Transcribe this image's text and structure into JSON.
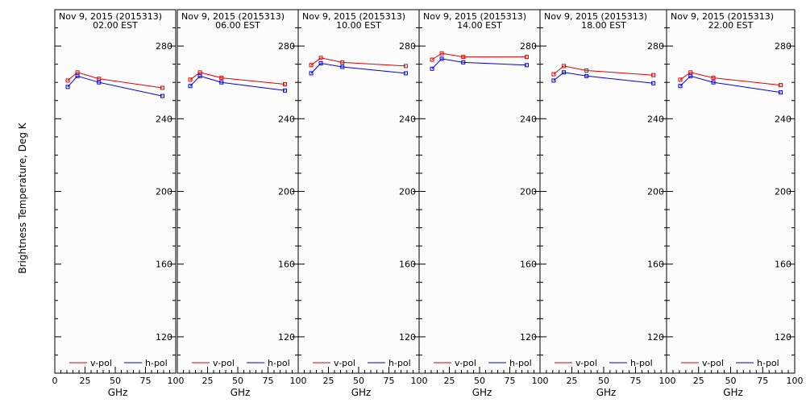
{
  "chart_data": {
    "type": "line",
    "ylabel": "Brightness Temperature, Deg K",
    "xlabel": "GHz",
    "ylim": [
      100,
      300
    ],
    "xlim": [
      0,
      100
    ],
    "yticks": [
      120,
      160,
      200,
      240,
      280
    ],
    "xticks": [
      0,
      25,
      50,
      75,
      100
    ],
    "colors": {
      "v-pol": "#e00000",
      "h-pol": "#0000e0"
    },
    "legend": [
      "v-pol",
      "h-pol"
    ],
    "x": [
      10.7,
      18.7,
      36.5,
      89.0
    ],
    "panels": [
      {
        "title": "Nov  9, 2015 (2015313)",
        "subtitle": "02.00 EST",
        "series": [
          {
            "name": "v-pol",
            "values": [
              261.0,
              265.5,
              262.0,
              257.0
            ]
          },
          {
            "name": "h-pol",
            "values": [
              257.5,
              263.5,
              260.0,
              252.5
            ]
          }
        ]
      },
      {
        "title": "Nov  9, 2015 (2015313)",
        "subtitle": "06.00 EST",
        "series": [
          {
            "name": "v-pol",
            "values": [
              261.5,
              265.5,
              262.5,
              259.0
            ]
          },
          {
            "name": "h-pol",
            "values": [
              258.0,
              263.5,
              260.0,
              255.5
            ]
          }
        ]
      },
      {
        "title": "Nov  9, 2015 (2015313)",
        "subtitle": "10.00 EST",
        "series": [
          {
            "name": "v-pol",
            "values": [
              269.5,
              273.5,
              271.0,
              269.0
            ]
          },
          {
            "name": "h-pol",
            "values": [
              265.0,
              270.5,
              268.5,
              265.0
            ]
          }
        ]
      },
      {
        "title": "Nov  9, 2015 (2015313)",
        "subtitle": "14.00 EST",
        "series": [
          {
            "name": "v-pol",
            "values": [
              272.5,
              276.0,
              274.0,
              274.0
            ]
          },
          {
            "name": "h-pol",
            "values": [
              267.5,
              273.0,
              271.0,
              269.5
            ]
          }
        ]
      },
      {
        "title": "Nov  9, 2015 (2015313)",
        "subtitle": "18.00 EST",
        "series": [
          {
            "name": "v-pol",
            "values": [
              264.5,
              269.0,
              266.5,
              264.0
            ]
          },
          {
            "name": "h-pol",
            "values": [
              261.0,
              265.5,
              263.5,
              259.5
            ]
          }
        ]
      },
      {
        "title": "Nov  9, 2015 (2015313)",
        "subtitle": "22.00 EST",
        "series": [
          {
            "name": "v-pol",
            "values": [
              261.5,
              265.5,
              262.5,
              258.5
            ]
          },
          {
            "name": "h-pol",
            "values": [
              258.0,
              263.5,
              260.0,
              254.5
            ]
          }
        ]
      }
    ]
  }
}
